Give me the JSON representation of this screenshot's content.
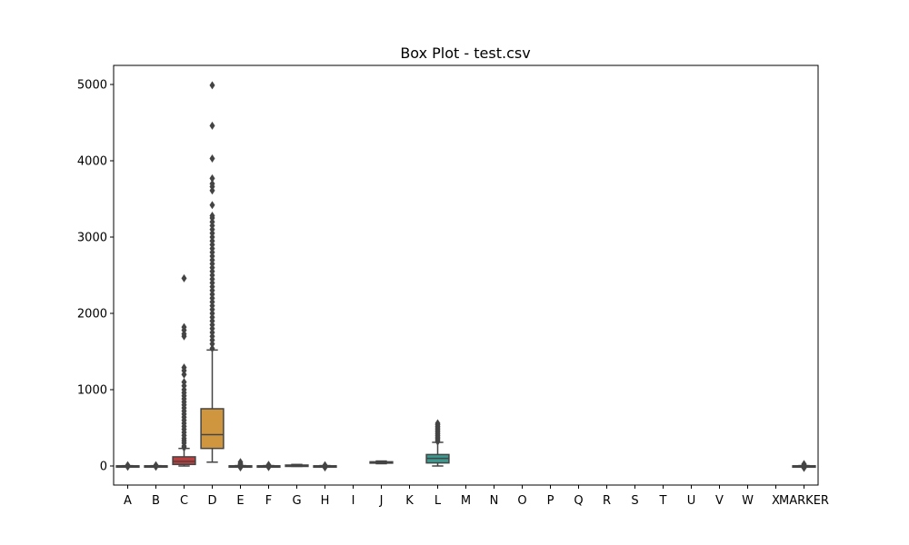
{
  "chart_data": {
    "type": "box",
    "title": "Box Plot - test.csv",
    "xlabel": "",
    "ylabel": "",
    "categories": [
      "A",
      "B",
      "C",
      "D",
      "E",
      "F",
      "G",
      "H",
      "I",
      "J",
      "K",
      "L",
      "M",
      "N",
      "O",
      "P",
      "Q",
      "R",
      "S",
      "T",
      "U",
      "V",
      "W",
      "X",
      "MARKER"
    ],
    "ylim": [
      -250,
      5250
    ],
    "yticks": [
      0,
      1000,
      2000,
      3000,
      4000,
      5000
    ],
    "grid": false,
    "boxes": [
      {
        "category": "A",
        "q1": -2,
        "median": 0,
        "q3": 2,
        "whisker_low": -4,
        "whisker_high": 4,
        "color": "#3274a1",
        "outliers": [
          -10,
          10
        ]
      },
      {
        "category": "B",
        "q1": -2,
        "median": 0,
        "q3": 2,
        "whisker_low": -4,
        "whisker_high": 4,
        "color": "#e1812c",
        "outliers": [
          -10,
          10
        ]
      },
      {
        "category": "C",
        "q1": 20,
        "median": 60,
        "q3": 120,
        "whisker_low": 0,
        "whisker_high": 230,
        "color": "#c03d3e",
        "outliers": [
          240,
          260,
          300,
          330,
          360,
          400,
          440,
          480,
          520,
          560,
          600,
          640,
          680,
          720,
          760,
          800,
          840,
          880,
          920,
          960,
          1000,
          1050,
          1100,
          1200,
          1250,
          1290,
          1700,
          1730,
          1780,
          1820,
          2460
        ]
      },
      {
        "category": "D",
        "q1": 230,
        "median": 410,
        "q3": 750,
        "whisker_low": 50,
        "whisker_high": 1520,
        "color": "#d0963f",
        "outliers": [
          1540,
          1600,
          1650,
          1700,
          1750,
          1800,
          1850,
          1900,
          1950,
          2000,
          2050,
          2100,
          2150,
          2200,
          2250,
          2300,
          2350,
          2400,
          2450,
          2500,
          2550,
          2600,
          2650,
          2700,
          2750,
          2800,
          2850,
          2900,
          2950,
          3000,
          3050,
          3100,
          3150,
          3200,
          3250,
          3280,
          3420,
          3610,
          3660,
          3700,
          3770,
          4030,
          4460,
          4990
        ]
      },
      {
        "category": "E",
        "q1": -2,
        "median": 0,
        "q3": 2,
        "whisker_low": -5,
        "whisker_high": 5,
        "color": "#3a923a",
        "outliers": [
          -20,
          10,
          20,
          30,
          50
        ]
      },
      {
        "category": "F",
        "q1": -2,
        "median": 0,
        "q3": 2,
        "whisker_low": -5,
        "whisker_high": 5,
        "color": "#e1812c",
        "outliers": [
          -15,
          15
        ]
      },
      {
        "category": "G",
        "q1": 0,
        "median": 5,
        "q3": 12,
        "whisker_low": -5,
        "whisker_high": 20,
        "color": "#7f7f7f",
        "outliers": []
      },
      {
        "category": "H",
        "q1": -2,
        "median": 0,
        "q3": 2,
        "whisker_low": -5,
        "whisker_high": 5,
        "color": "#3274a1",
        "outliers": [
          -20,
          -10,
          10
        ]
      },
      {
        "category": "J",
        "q1": 40,
        "median": 45,
        "q3": 55,
        "whisker_low": 30,
        "whisker_high": 65,
        "color": "#8c8c8c",
        "outliers": []
      },
      {
        "category": "L",
        "q1": 40,
        "median": 100,
        "q3": 150,
        "whisker_low": 0,
        "whisker_high": 310,
        "color": "#3a9a8f",
        "outliers": [
          320,
          340,
          360,
          380,
          400,
          420,
          440,
          460,
          480,
          500,
          520,
          540,
          560
        ]
      },
      {
        "category": "MARKER",
        "q1": -2,
        "median": 0,
        "q3": 2,
        "whisker_low": -5,
        "whisker_high": 5,
        "color": "#3274a1",
        "outliers": [
          -25,
          -15,
          15,
          25
        ]
      }
    ]
  }
}
